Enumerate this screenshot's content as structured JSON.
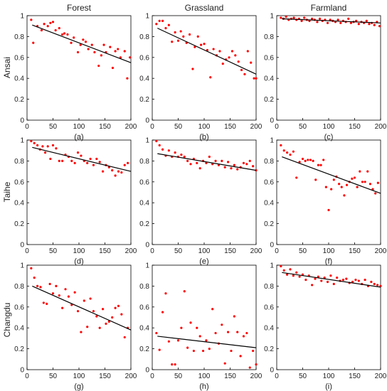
{
  "figure": {
    "columns": [
      "Forest",
      "Grassland",
      "Farmland"
    ],
    "rows": [
      "Ansai",
      "Taihe",
      "Changdu"
    ]
  },
  "colors": {
    "points": "#ff0000",
    "fit_line": "#000000",
    "axes": "#000000"
  },
  "chart_data": [
    {
      "type": "scatter",
      "caption": "(a)",
      "xlim": [
        0,
        200
      ],
      "ylim": [
        0,
        1
      ],
      "xticks": [
        0,
        50,
        100,
        150,
        200
      ],
      "yticks": [
        0,
        0.2,
        0.4,
        0.6,
        0.8,
        1
      ],
      "x": [
        8,
        12,
        20,
        28,
        33,
        40,
        45,
        50,
        55,
        62,
        68,
        72,
        78,
        85,
        90,
        98,
        103,
        108,
        113,
        118,
        125,
        130,
        138,
        143,
        148,
        152,
        160,
        165,
        170,
        175,
        180,
        188,
        193,
        198
      ],
      "y": [
        0.96,
        0.74,
        0.9,
        0.86,
        0.92,
        0.9,
        0.93,
        0.94,
        0.86,
        0.88,
        0.82,
        0.83,
        0.82,
        0.74,
        0.79,
        0.65,
        0.72,
        0.77,
        0.75,
        0.68,
        0.72,
        0.65,
        0.52,
        0.62,
        0.72,
        0.65,
        0.7,
        0.5,
        0.66,
        0.68,
        0.6,
        0.66,
        0.4,
        0.6
      ],
      "fit": {
        "x": [
          10,
          200
        ],
        "y": [
          0.91,
          0.55
        ]
      }
    },
    {
      "type": "scatter",
      "caption": "(b)",
      "xlim": [
        0,
        200
      ],
      "ylim": [
        0,
        1
      ],
      "xticks": [
        0,
        50,
        100,
        150,
        200
      ],
      "yticks": [
        0,
        0.2,
        0.4,
        0.6,
        0.8,
        1
      ],
      "x": [
        8,
        14,
        20,
        26,
        32,
        38,
        44,
        50,
        55,
        60,
        66,
        72,
        78,
        82,
        88,
        94,
        100,
        106,
        112,
        118,
        124,
        130,
        136,
        142,
        148,
        154,
        160,
        166,
        172,
        178,
        184,
        190,
        196,
        200
      ],
      "y": [
        0.92,
        0.95,
        0.95,
        0.88,
        0.91,
        0.75,
        0.84,
        0.76,
        0.85,
        0.8,
        0.74,
        0.82,
        0.49,
        0.7,
        0.8,
        0.72,
        0.73,
        0.67,
        0.41,
        0.68,
        0.62,
        0.66,
        0.54,
        0.58,
        0.6,
        0.66,
        0.62,
        0.56,
        0.48,
        0.44,
        0.66,
        0.55,
        0.4,
        0.4
      ],
      "fit": {
        "x": [
          10,
          200
        ],
        "y": [
          0.88,
          0.44
        ]
      }
    },
    {
      "type": "scatter",
      "caption": "(c)",
      "xlim": [
        0,
        200
      ],
      "ylim": [
        0,
        1
      ],
      "xticks": [
        0,
        50,
        100,
        150,
        200
      ],
      "yticks": [
        0,
        0.2,
        0.4,
        0.6,
        0.8,
        1
      ],
      "x": [
        8,
        13,
        18,
        23,
        28,
        33,
        38,
        43,
        48,
        53,
        58,
        63,
        68,
        73,
        78,
        83,
        88,
        93,
        98,
        103,
        108,
        113,
        118,
        123,
        128,
        133,
        138,
        143,
        148,
        153,
        158,
        163,
        168,
        173,
        178,
        183,
        188,
        193,
        198
      ],
      "y": [
        0.98,
        0.97,
        0.99,
        0.96,
        0.97,
        0.98,
        0.96,
        0.97,
        0.95,
        0.98,
        0.96,
        0.95,
        0.97,
        0.96,
        0.94,
        0.97,
        0.95,
        0.96,
        0.93,
        0.96,
        0.95,
        0.94,
        0.96,
        0.93,
        0.95,
        0.94,
        0.97,
        0.93,
        0.94,
        0.95,
        0.92,
        0.94,
        0.93,
        0.95,
        0.92,
        0.93,
        0.91,
        0.94,
        0.9
      ],
      "fit": {
        "x": [
          10,
          200
        ],
        "y": [
          0.97,
          0.93
        ]
      }
    },
    {
      "type": "scatter",
      "caption": "(d)",
      "xlim": [
        0,
        200
      ],
      "ylim": [
        0,
        1
      ],
      "xticks": [
        0,
        50,
        100,
        150,
        200
      ],
      "yticks": [
        0,
        0.2,
        0.4,
        0.6,
        0.8,
        1
      ],
      "x": [
        8,
        14,
        20,
        25,
        30,
        35,
        40,
        45,
        50,
        56,
        62,
        68,
        74,
        80,
        86,
        92,
        98,
        104,
        110,
        116,
        122,
        128,
        134,
        140,
        146,
        152,
        158,
        164,
        170,
        176,
        182,
        188,
        194
      ],
      "y": [
        0.99,
        0.97,
        0.95,
        0.91,
        0.94,
        0.88,
        0.94,
        0.82,
        0.95,
        0.92,
        0.8,
        0.8,
        0.86,
        0.84,
        0.8,
        0.78,
        0.88,
        0.85,
        0.8,
        0.78,
        0.82,
        0.76,
        0.82,
        0.79,
        0.7,
        0.76,
        0.74,
        0.71,
        0.66,
        0.7,
        0.69,
        0.76,
        0.78
      ],
      "fit": {
        "x": [
          10,
          200
        ],
        "y": [
          0.93,
          0.7
        ]
      }
    },
    {
      "type": "scatter",
      "caption": "(e)",
      "xlim": [
        0,
        200
      ],
      "ylim": [
        0,
        1
      ],
      "xticks": [
        0,
        50,
        100,
        150,
        200
      ],
      "yticks": [
        0,
        0.2,
        0.4,
        0.6,
        0.8,
        1
      ],
      "x": [
        8,
        14,
        20,
        26,
        32,
        38,
        44,
        50,
        56,
        62,
        68,
        74,
        80,
        86,
        92,
        98,
        104,
        110,
        116,
        122,
        128,
        134,
        140,
        146,
        152,
        158,
        164,
        170,
        176,
        182,
        188,
        194,
        200
      ],
      "y": [
        0.99,
        0.95,
        0.91,
        0.85,
        0.9,
        0.84,
        0.88,
        0.84,
        0.86,
        0.84,
        0.8,
        0.77,
        0.82,
        0.78,
        0.73,
        0.8,
        0.78,
        0.84,
        0.77,
        0.8,
        0.76,
        0.8,
        0.74,
        0.79,
        0.73,
        0.76,
        0.72,
        0.74,
        0.78,
        0.77,
        0.8,
        0.75,
        0.71
      ],
      "fit": {
        "x": [
          10,
          200
        ],
        "y": [
          0.87,
          0.71
        ]
      }
    },
    {
      "type": "scatter",
      "caption": "(f)",
      "xlim": [
        0,
        200
      ],
      "ylim": [
        0,
        1
      ],
      "xticks": [
        0,
        50,
        100,
        150,
        200
      ],
      "yticks": [
        0,
        0.2,
        0.4,
        0.6,
        0.8,
        1
      ],
      "x": [
        8,
        14,
        20,
        26,
        32,
        38,
        44,
        50,
        55,
        60,
        65,
        70,
        75,
        80,
        85,
        90,
        95,
        100,
        105,
        110,
        115,
        120,
        125,
        130,
        135,
        140,
        145,
        150,
        155,
        160,
        165,
        170,
        175,
        180,
        185,
        190,
        195
      ],
      "y": [
        0.95,
        0.9,
        0.88,
        0.86,
        0.89,
        0.64,
        0.79,
        0.82,
        0.8,
        0.81,
        0.81,
        0.8,
        0.62,
        0.76,
        0.76,
        0.81,
        0.55,
        0.33,
        0.53,
        0.62,
        0.65,
        0.58,
        0.55,
        0.47,
        0.57,
        0.6,
        0.63,
        0.64,
        0.55,
        0.7,
        0.6,
        0.6,
        0.7,
        0.58,
        0.53,
        0.49,
        0.59
      ],
      "fit": {
        "x": [
          10,
          200
        ],
        "y": [
          0.84,
          0.49
        ]
      }
    },
    {
      "type": "scatter",
      "caption": "(g)",
      "xlim": [
        0,
        200
      ],
      "ylim": [
        0,
        1
      ],
      "xticks": [
        0,
        50,
        100,
        150,
        200
      ],
      "yticks": [
        0,
        0.2,
        0.4,
        0.6,
        0.8,
        1
      ],
      "x": [
        8,
        14,
        20,
        26,
        32,
        38,
        44,
        50,
        56,
        62,
        68,
        74,
        80,
        86,
        92,
        98,
        104,
        110,
        116,
        122,
        128,
        134,
        140,
        146,
        152,
        158,
        164,
        170,
        176,
        182,
        188,
        194
      ],
      "y": [
        0.97,
        0.88,
        0.8,
        0.79,
        0.64,
        0.63,
        0.82,
        0.73,
        0.8,
        0.71,
        0.59,
        0.77,
        0.7,
        0.62,
        0.74,
        0.56,
        0.36,
        0.66,
        0.41,
        0.68,
        0.56,
        0.51,
        0.4,
        0.58,
        0.44,
        0.46,
        0.5,
        0.59,
        0.61,
        0.53,
        0.31,
        0.4
      ],
      "fit": {
        "x": [
          10,
          200
        ],
        "y": [
          0.8,
          0.38
        ]
      }
    },
    {
      "type": "scatter",
      "caption": "(h)",
      "xlim": [
        0,
        200
      ],
      "ylim": [
        0,
        1
      ],
      "xticks": [
        0,
        50,
        100,
        150,
        200
      ],
      "yticks": [
        0,
        0.2,
        0.4,
        0.6,
        0.8,
        1
      ],
      "x": [
        8,
        14,
        20,
        26,
        32,
        38,
        44,
        50,
        56,
        62,
        68,
        74,
        80,
        86,
        92,
        98,
        104,
        110,
        116,
        122,
        128,
        134,
        140,
        146,
        152,
        158,
        164,
        170,
        176,
        182,
        188,
        194,
        200
      ],
      "y": [
        0.35,
        0.19,
        0.55,
        0.73,
        0.27,
        0.05,
        0.05,
        0.28,
        0.4,
        0.75,
        0.21,
        0.45,
        0.18,
        0.4,
        0.32,
        0.18,
        0.28,
        0.2,
        0.58,
        0.35,
        0.25,
        0.43,
        0.06,
        0.36,
        0.18,
        0.51,
        0.36,
        0.13,
        0.32,
        0.35,
        0.02,
        0.18,
        0.05
      ],
      "fit": {
        "x": [
          10,
          200
        ],
        "y": [
          0.32,
          0.21
        ]
      }
    },
    {
      "type": "scatter",
      "caption": "(i)",
      "xlim": [
        0,
        200
      ],
      "ylim": [
        0,
        1
      ],
      "xticks": [
        0,
        50,
        100,
        150,
        200
      ],
      "yticks": [
        0,
        0.2,
        0.4,
        0.6,
        0.8,
        1
      ],
      "x": [
        8,
        14,
        20,
        26,
        32,
        38,
        44,
        50,
        56,
        62,
        68,
        74,
        80,
        86,
        92,
        98,
        104,
        110,
        116,
        122,
        128,
        134,
        140,
        146,
        152,
        158,
        164,
        170,
        176,
        182,
        188,
        194,
        200
      ],
      "y": [
        0.99,
        0.95,
        0.91,
        0.96,
        0.9,
        0.93,
        0.89,
        0.91,
        0.86,
        0.9,
        0.81,
        0.87,
        0.89,
        0.85,
        0.88,
        0.84,
        0.9,
        0.82,
        0.88,
        0.85,
        0.86,
        0.87,
        0.83,
        0.84,
        0.86,
        0.85,
        0.82,
        0.86,
        0.8,
        0.84,
        0.82,
        0.81,
        0.8
      ],
      "fit": {
        "x": [
          10,
          200
        ],
        "y": [
          0.93,
          0.79
        ]
      }
    }
  ]
}
